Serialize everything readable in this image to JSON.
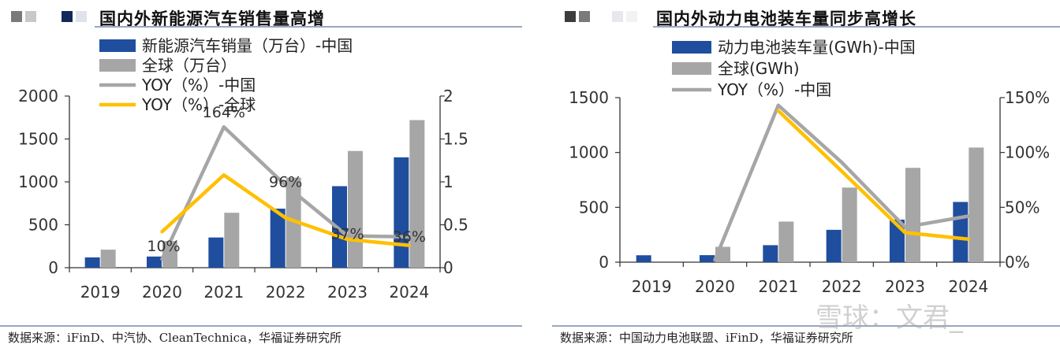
{
  "colors": {
    "china_bar": "#1f4e9f",
    "global_bar": "#a6a6a6",
    "yoy_china": "#a6a6a6",
    "yoy_global": "#ffc000",
    "title_rule": "#9aa7bd"
  },
  "panels": [
    {
      "title": "国内外新能源汽车销售量高增",
      "source": "数据来源：iFinD、中汽协、CleanTechnica，华福证券研究所"
    },
    {
      "title": "国内外动力电池装车量同步高增长",
      "source": "数据来源：中国动力电池联盟、iFinD，华福证券研究所"
    }
  ],
  "watermark": "雪球：文君_",
  "chart_data": [
    {
      "type": "bar",
      "title": "国内外新能源汽车销售量高增",
      "categories": [
        "2019",
        "2020",
        "2021",
        "2022",
        "2023",
        "2024"
      ],
      "series": [
        {
          "name": "新能源汽车销量（万台）-中国",
          "kind": "bar",
          "axis": "left",
          "values": [
            120,
            130,
            352,
            688,
            950,
            1286
          ]
        },
        {
          "name": "全球（万台）",
          "kind": "bar",
          "axis": "left",
          "values": [
            210,
            310,
            640,
            1050,
            1360,
            1720
          ]
        },
        {
          "name": "YOY（%）-中国",
          "kind": "line",
          "axis": "right",
          "values": [
            null,
            0.1,
            1.64,
            0.96,
            0.37,
            0.36
          ]
        },
        {
          "name": "YOY（%）-全球",
          "kind": "line",
          "axis": "right",
          "values": [
            null,
            0.42,
            1.08,
            0.58,
            0.33,
            0.26
          ]
        }
      ],
      "data_labels": [
        {
          "series": 2,
          "index": 1,
          "text": "10%"
        },
        {
          "series": 2,
          "index": 2,
          "text": "164%"
        },
        {
          "series": 2,
          "index": 3,
          "text": "96%"
        },
        {
          "series": 2,
          "index": 4,
          "text": "37%"
        },
        {
          "series": 2,
          "index": 5,
          "text": "36%"
        }
      ],
      "y_left": {
        "min": 0,
        "max": 2000,
        "ticks": [
          "0",
          "500",
          "1000",
          "1500",
          "2000"
        ]
      },
      "y_right": {
        "min": 0,
        "max": 2,
        "ticks": [
          "0",
          "0.5",
          "1",
          "1.5",
          "2"
        ]
      },
      "legend_position": "top"
    },
    {
      "type": "bar",
      "title": "国内外动力电池装车量同步高增长",
      "categories": [
        "2019",
        "2020",
        "2021",
        "2022",
        "2023",
        "2024"
      ],
      "series": [
        {
          "name": "动力电池装车量(GWh)-中国",
          "kind": "bar",
          "axis": "left",
          "values": [
            63,
            64,
            155,
            295,
            388,
            549
          ]
        },
        {
          "name": "全球(GWh)",
          "kind": "bar",
          "axis": "left",
          "values": [
            null,
            140,
            370,
            680,
            860,
            1045
          ]
        },
        {
          "name": "YOY（%）-中国",
          "kind": "line",
          "axis": "right",
          "values": [
            null,
            0.02,
            1.43,
            0.91,
            0.32,
            0.42
          ]
        },
        {
          "name": "",
          "kind": "line",
          "axis": "right",
          "values": [
            null,
            null,
            1.38,
            0.83,
            0.27,
            0.21
          ]
        }
      ],
      "data_labels": [],
      "y_left": {
        "min": 0,
        "max": 1500,
        "ticks": [
          "0",
          "500",
          "1000",
          "1500"
        ]
      },
      "y_right": {
        "min": 0,
        "max": 1.5,
        "ticks": [
          "0%",
          "50%",
          "100%",
          "150%"
        ]
      },
      "legend_position": "top"
    }
  ]
}
